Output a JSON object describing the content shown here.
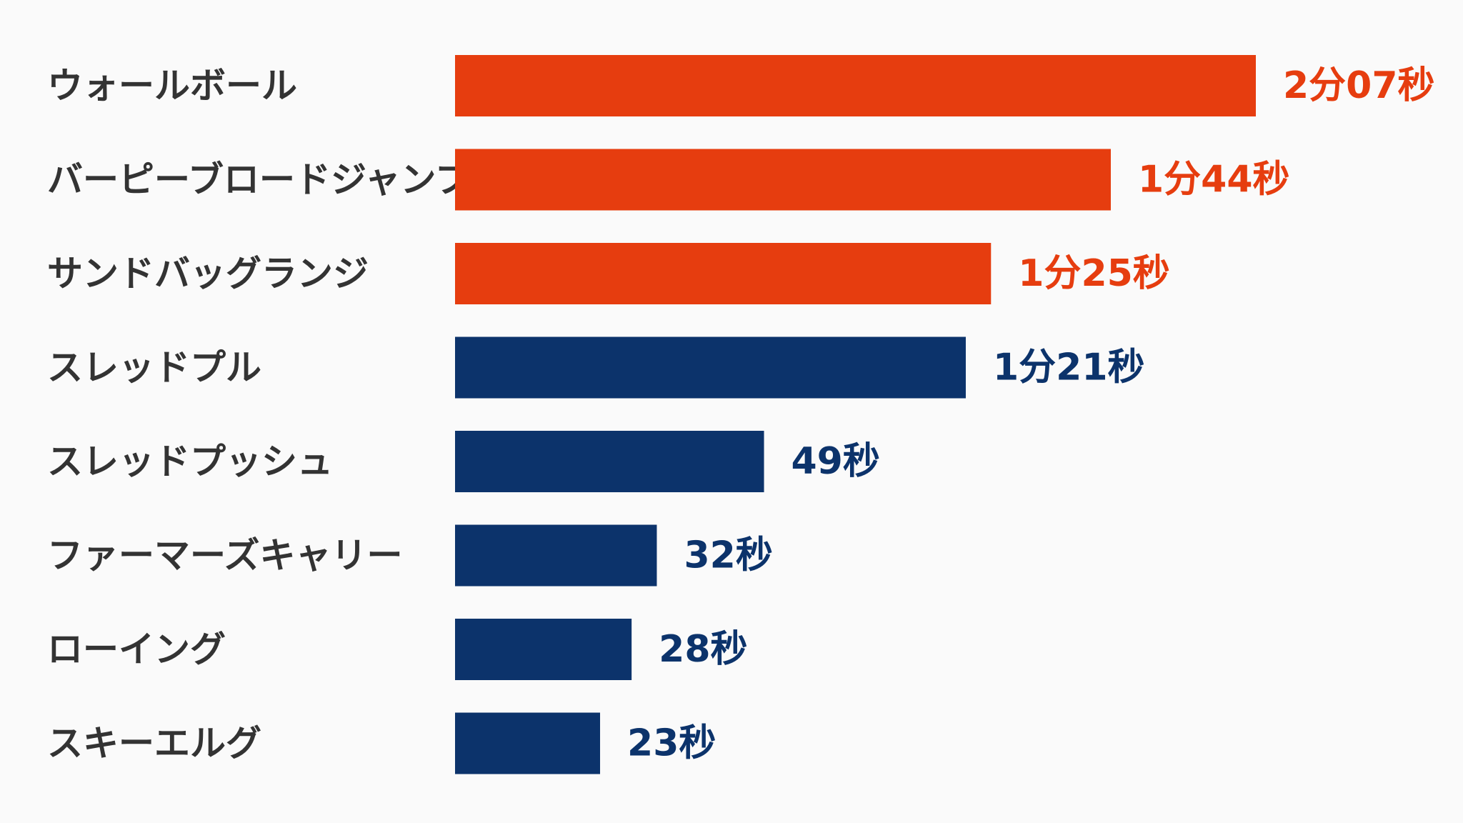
{
  "chart_data": {
    "type": "bar",
    "orientation": "horizontal",
    "categories": [
      "ウォールボール",
      "バーピーブロードジャンプ",
      "サンドバッグランジ",
      "スレッドプル",
      "スレッドプッシュ",
      "ファーマーズキャリー",
      "ローイング",
      "スキーエルグ"
    ],
    "values": [
      127,
      104,
      85,
      81,
      49,
      32,
      28,
      23
    ],
    "value_labels": [
      "2分07秒",
      "1分44秒",
      "1分25秒",
      "1分21秒",
      "49秒",
      "32秒",
      "28秒",
      "23秒"
    ],
    "colors": [
      "#e63d0f",
      "#e63d0f",
      "#e63d0f",
      "#0c336b",
      "#0c336b",
      "#0c336b",
      "#0c336b",
      "#0c336b"
    ],
    "title": "",
    "xlabel": "",
    "ylabel": "",
    "grid": false
  }
}
